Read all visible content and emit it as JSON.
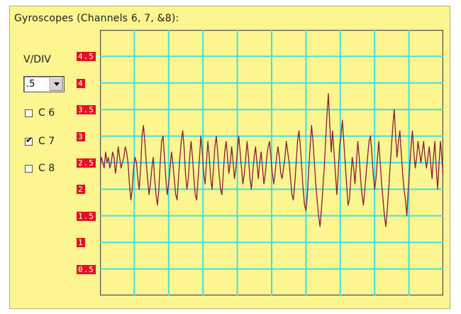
{
  "title": "Gyroscopes (Channels 6, 7, &8):",
  "vdiv": {
    "label": "V/DIV",
    "selected": ".5"
  },
  "channels": [
    {
      "label": "C 6",
      "checked": false
    },
    {
      "label": "C 7",
      "checked": true
    },
    {
      "label": "C 8",
      "checked": false
    }
  ],
  "colors": {
    "panel": "#fdf58f",
    "grid": "#3fe0e0",
    "trace": "#8a1a3a",
    "label_bg": "#e8101c"
  },
  "chart_data": {
    "type": "line",
    "ylim": [
      0,
      5
    ],
    "y_ticks": [
      "0.5",
      "1",
      "1.5",
      "2",
      "2.5",
      "3",
      "3.5",
      "4",
      "4.5"
    ],
    "grid": true,
    "series": [
      {
        "values": [
          2.4,
          2.6,
          2.5,
          2.4,
          2.7,
          2.5,
          2.6,
          2.4,
          2.5,
          2.7,
          2.6,
          2.3,
          2.5,
          2.8,
          2.6,
          2.4,
          2.5,
          2.6,
          2.8,
          2.7,
          2.5,
          2.1,
          1.8,
          2.0,
          2.4,
          2.6,
          2.5,
          2.2,
          2.0,
          2.4,
          3.0,
          3.2,
          2.9,
          2.5,
          2.2,
          1.9,
          2.1,
          2.4,
          2.6,
          2.2,
          1.9,
          1.7,
          2.0,
          2.5,
          2.9,
          3.0,
          2.6,
          2.2,
          1.9,
          2.1,
          2.4,
          2.7,
          2.5,
          2.2,
          1.9,
          1.8,
          2.2,
          2.6,
          2.9,
          3.1,
          2.8,
          2.3,
          2.0,
          2.2,
          2.6,
          2.9,
          2.6,
          2.2,
          1.9,
          1.8,
          2.2,
          2.6,
          3.0,
          2.7,
          2.3,
          2.1,
          2.5,
          2.9,
          2.6,
          2.2,
          2.0,
          2.4,
          2.8,
          3.0,
          2.7,
          2.3,
          2.0,
          1.9,
          2.3,
          2.7,
          2.9,
          2.6,
          2.3,
          2.5,
          2.8,
          2.5,
          2.2,
          2.4,
          2.7,
          3.0,
          2.7,
          2.4,
          2.1,
          2.3,
          2.6,
          2.9,
          2.6,
          2.2,
          2.0,
          2.3,
          2.6,
          2.8,
          2.5,
          2.2,
          2.5,
          2.7,
          2.4,
          2.1,
          2.3,
          2.6,
          2.8,
          2.9,
          2.6,
          2.3,
          2.1,
          2.3,
          2.6,
          2.8,
          2.6,
          2.3,
          2.2,
          2.4,
          2.6,
          2.9,
          2.7,
          2.5,
          2.2,
          1.9,
          1.8,
          2.1,
          2.5,
          2.9,
          3.1,
          2.8,
          2.4,
          2.0,
          1.7,
          1.6,
          1.9,
          2.4,
          2.8,
          3.2,
          2.9,
          2.5,
          2.1,
          1.8,
          1.5,
          1.3,
          1.6,
          2.0,
          2.4,
          2.9,
          3.4,
          3.8,
          3.2,
          2.7,
          3.1,
          2.7,
          2.3,
          1.9,
          2.3,
          2.8,
          3.0,
          3.3,
          2.9,
          2.5,
          2.1,
          1.7,
          1.8,
          2.2,
          2.6,
          2.4,
          2.1,
          2.5,
          2.9,
          2.6,
          2.2,
          1.9,
          1.7,
          2.0,
          2.3,
          2.6,
          2.9,
          3.0,
          2.7,
          2.3,
          2.0,
          2.2,
          2.6,
          2.9,
          2.5,
          2.1,
          1.8,
          1.5,
          1.3,
          1.6,
          2.0,
          2.4,
          2.8,
          3.2,
          3.5,
          3.0,
          2.6,
          2.9,
          3.1,
          2.7,
          2.3,
          2.0,
          1.8,
          1.5,
          2.0,
          2.4,
          2.8,
          3.1,
          2.7,
          2.4,
          2.6,
          2.9,
          2.7,
          2.5,
          2.7,
          2.9,
          2.6,
          2.4,
          2.6,
          2.8,
          2.5,
          2.2,
          2.6,
          2.9,
          2.4,
          2.0,
          2.5,
          2.9,
          2.6,
          2.2
        ]
      }
    ]
  }
}
